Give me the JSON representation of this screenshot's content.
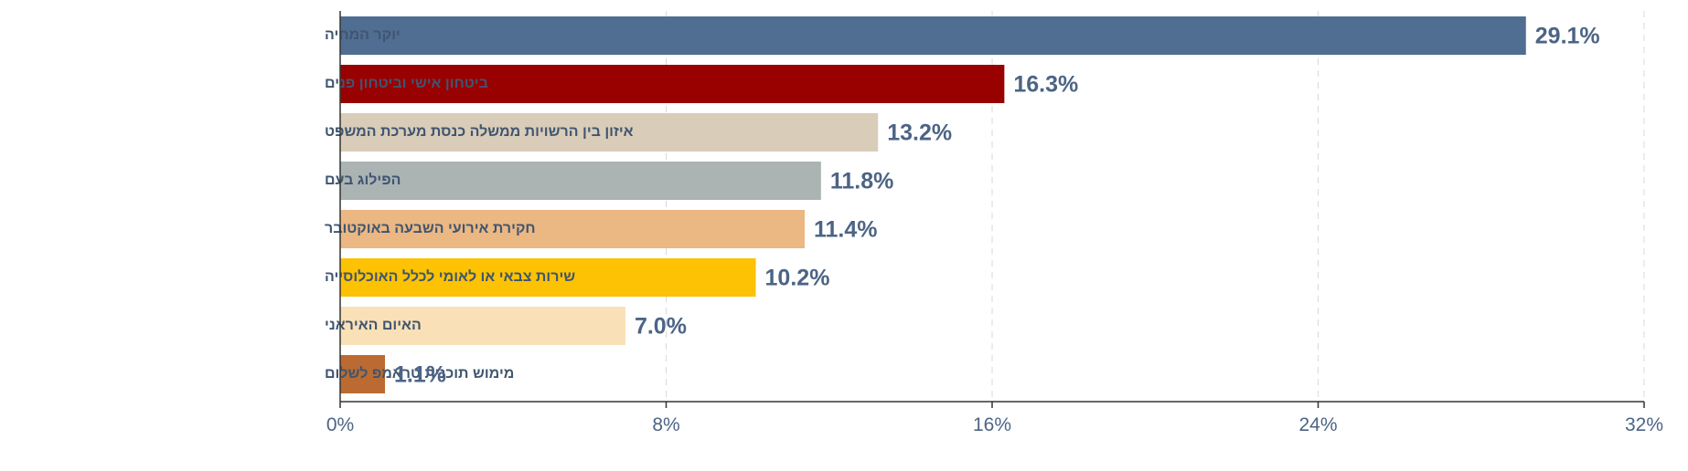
{
  "chart_data": {
    "type": "bar",
    "orientation": "horizontal",
    "categories": [
      "יוקר המחיה",
      "ביטחון אישי וביטחון פנים",
      "איזון בין הרשויות ממשלה כנסת מערכת המשפט",
      "הפילוג בעם",
      "חקירת אירועי השבעה באוקטובר",
      "שירות צבאי או לאומי לכלל האוכלוסייה",
      "האיום האיראני",
      "מימוש תוכנית טראמפ לשלום"
    ],
    "values": [
      29.1,
      16.3,
      13.2,
      11.8,
      11.4,
      10.2,
      7.0,
      1.1
    ],
    "value_labels": [
      "29.1%",
      "16.3%",
      "13.2%",
      "11.8%",
      "11.4%",
      "10.2%",
      "7.0%",
      "1.1%"
    ],
    "colors": [
      "#4f6e91",
      "#990000",
      "#d9ccb8",
      "#abb3b3",
      "#ebb783",
      "#fcc203",
      "#f9e0b7",
      "#bb6b31"
    ],
    "xlim": [
      0,
      32
    ],
    "x_ticks": [
      0,
      8,
      16,
      24,
      32
    ],
    "x_tick_labels": [
      "0%",
      "8%",
      "16%",
      "24%",
      "32%"
    ],
    "grid": "vertical dashed",
    "title": "",
    "xlabel": "",
    "ylabel": ""
  }
}
